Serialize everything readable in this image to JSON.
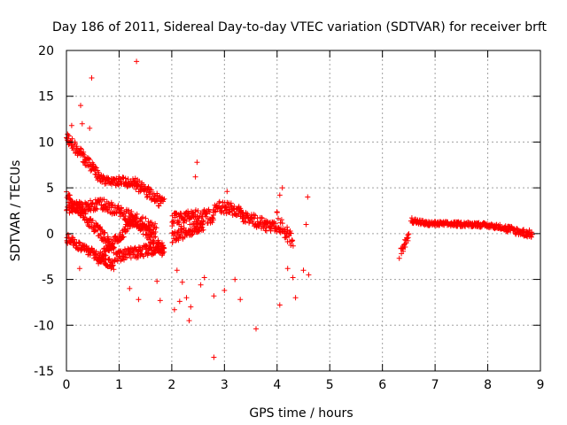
{
  "chart_data": {
    "type": "scatter",
    "title": "Day 186 of 2011, Sidereal Day-to-day VTEC variation (SDTVAR) for receiver brft",
    "xlabel": "GPS time / hours",
    "ylabel": "SDTVAR / TECUs",
    "xlim": [
      0,
      9
    ],
    "ylim": [
      -15,
      20
    ],
    "xticks": [
      0,
      1,
      2,
      3,
      4,
      5,
      6,
      7,
      8,
      9
    ],
    "yticks": [
      -15,
      -10,
      -5,
      0,
      5,
      10,
      15,
      20
    ],
    "grid": true,
    "marker": "+",
    "color": "#ff0000",
    "series": [
      {
        "name": "SDTVAR",
        "bands": [
          {
            "x0": 0.0,
            "y0": 10.5,
            "x1": 0.6,
            "y1": 6.5,
            "width": 1.2
          },
          {
            "x0": 0.6,
            "y0": 6.0,
            "x1": 1.3,
            "y1": 5.5,
            "width": 1.0
          },
          {
            "x0": 1.3,
            "y0": 5.5,
            "x1": 1.85,
            "y1": 3.2,
            "width": 1.3
          },
          {
            "x0": 0.0,
            "y0": 4.0,
            "x1": 0.9,
            "y1": -1.5,
            "width": 1.2
          },
          {
            "x0": 0.0,
            "y0": 2.8,
            "x1": 0.7,
            "y1": 3.2,
            "width": 1.2
          },
          {
            "x0": 0.7,
            "y0": 3.2,
            "x1": 1.7,
            "y1": 0.5,
            "width": 1.3
          },
          {
            "x0": 0.0,
            "y0": -0.5,
            "x1": 0.9,
            "y1": -3.5,
            "width": 1.0
          },
          {
            "x0": 0.9,
            "y0": -2.5,
            "x1": 1.85,
            "y1": -1.5,
            "width": 1.2
          },
          {
            "x0": 0.6,
            "y0": -2.8,
            "x1": 1.3,
            "y1": 1.5,
            "width": 1.1
          },
          {
            "x0": 1.3,
            "y0": 1.5,
            "x1": 1.85,
            "y1": -2.0,
            "width": 1.5
          },
          {
            "x0": 2.0,
            "y0": 1.5,
            "x1": 2.8,
            "y1": 2.0,
            "width": 1.6
          },
          {
            "x0": 2.8,
            "y0": 3.0,
            "x1": 3.3,
            "y1": 2.5,
            "width": 1.3
          },
          {
            "x0": 3.3,
            "y0": 2.0,
            "x1": 4.0,
            "y1": 0.5,
            "width": 1.3
          },
          {
            "x0": 2.0,
            "y0": -0.5,
            "x1": 2.6,
            "y1": 1.0,
            "width": 1.2
          },
          {
            "x0": 4.0,
            "y0": 1.5,
            "x1": 4.3,
            "y1": -1.0,
            "width": 1.8
          },
          {
            "x0": 6.35,
            "y0": -2.0,
            "x1": 6.5,
            "y1": -0.2,
            "width": 0.8
          },
          {
            "x0": 6.55,
            "y0": 1.5,
            "x1": 6.8,
            "y1": 1.1,
            "width": 0.6
          },
          {
            "x0": 6.8,
            "y0": 1.1,
            "x1": 7.8,
            "y1": 1.0,
            "width": 0.5
          },
          {
            "x0": 7.8,
            "y0": 1.0,
            "x1": 8.3,
            "y1": 0.7,
            "width": 0.5
          },
          {
            "x0": 8.3,
            "y0": 0.6,
            "x1": 8.85,
            "y1": -0.1,
            "width": 0.8
          }
        ],
        "outliers": [
          [
            1.33,
            18.8
          ],
          [
            0.48,
            17.0
          ],
          [
            0.27,
            14.0
          ],
          [
            0.3,
            12.0
          ],
          [
            0.44,
            11.5
          ],
          [
            0.1,
            11.8
          ],
          [
            2.48,
            7.8
          ],
          [
            2.45,
            6.2
          ],
          [
            2.8,
            -13.5
          ],
          [
            3.6,
            -10.4
          ],
          [
            2.33,
            -9.5
          ],
          [
            2.36,
            -8.0
          ],
          [
            2.28,
            -7.0
          ],
          [
            3.3,
            -7.2
          ],
          [
            2.8,
            -6.8
          ],
          [
            1.37,
            -7.2
          ],
          [
            1.78,
            -7.3
          ],
          [
            4.35,
            -7.0
          ],
          [
            4.05,
            -7.8
          ],
          [
            3.0,
            -6.2
          ],
          [
            3.2,
            -5.0
          ],
          [
            2.2,
            -5.3
          ],
          [
            2.55,
            -5.6
          ],
          [
            4.3,
            -4.8
          ],
          [
            4.5,
            -4.0
          ],
          [
            4.6,
            -4.5
          ],
          [
            4.2,
            -3.8
          ],
          [
            1.72,
            -5.2
          ],
          [
            2.05,
            -8.3
          ],
          [
            2.15,
            -7.4
          ],
          [
            4.1,
            5.0
          ],
          [
            4.58,
            4.0
          ],
          [
            4.55,
            1.0
          ],
          [
            0.25,
            -3.8
          ],
          [
            1.2,
            -6.0
          ],
          [
            2.62,
            -4.8
          ],
          [
            2.1,
            -4.0
          ],
          [
            3.05,
            4.6
          ],
          [
            4.05,
            4.2
          ],
          [
            6.32,
            -2.7
          ]
        ]
      }
    ]
  }
}
